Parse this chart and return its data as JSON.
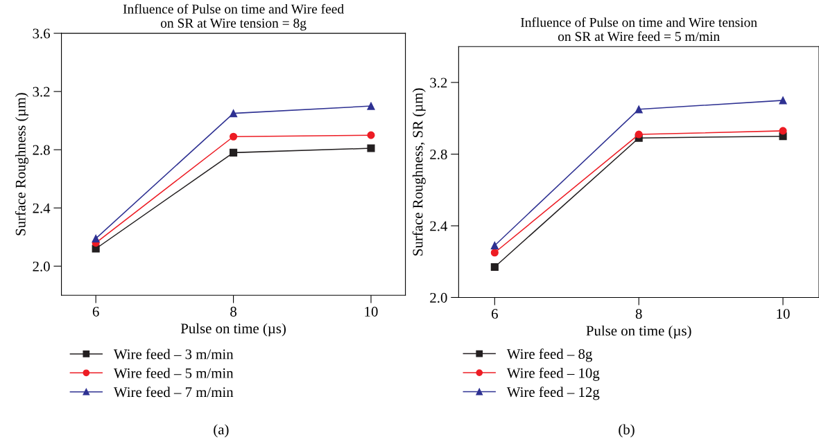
{
  "chart_data": [
    {
      "type": "line",
      "title": "Influence of Pulse on time and Wire feed\non SR at Wire tension = 8g",
      "xlabel": "Pulse on time (µs)",
      "ylabel": "Surface Roughness (µm)",
      "x": [
        6,
        8,
        10
      ],
      "series": [
        {
          "name": "Wire feed – 3 m/min",
          "color": "#231f20",
          "marker": "square",
          "values": [
            2.12,
            2.78,
            2.81
          ]
        },
        {
          "name": "Wire feed – 5 m/min",
          "color": "#ed1c24",
          "marker": "circle",
          "values": [
            2.16,
            2.89,
            2.9
          ]
        },
        {
          "name": "Wire feed – 7 m/min",
          "color": "#2e3192",
          "marker": "triangle",
          "values": [
            2.19,
            3.05,
            3.1
          ]
        }
      ],
      "xlim": [
        5.5,
        10.5
      ],
      "xticks": [
        6,
        8,
        10
      ],
      "ylim": [
        1.8,
        3.6
      ],
      "yticks": [
        {
          "value": 2,
          "label": "2.0"
        },
        2.4,
        2.8,
        3.2,
        3.6
      ],
      "grid": false,
      "legend": "bottom",
      "annotations": [
        "(a)"
      ]
    },
    {
      "type": "line",
      "title": "Influence of Pulse on time and Wire tension\non SR at Wire feed = 5 m/min",
      "xlabel": "Pulse on time (µs)",
      "ylabel": "Surface Roughness, SR (µm)",
      "x": [
        6,
        8,
        10
      ],
      "series": [
        {
          "name": "Wire feed – 8g",
          "color": "#231f20",
          "marker": "square",
          "values": [
            2.17,
            2.89,
            2.9
          ]
        },
        {
          "name": "Wire feed – 10g",
          "color": "#ed1c24",
          "marker": "circle",
          "values": [
            2.25,
            2.91,
            2.93
          ]
        },
        {
          "name": "Wire feed – 12g",
          "color": "#2e3192",
          "marker": "triangle",
          "values": [
            2.29,
            3.05,
            3.1
          ]
        }
      ],
      "xlim": [
        5.5,
        10.5
      ],
      "xticks": [
        6,
        8,
        10
      ],
      "ylim": [
        2.0,
        3.4
      ],
      "yticks": [
        {
          "value": 2,
          "label": "2.0"
        },
        2.4,
        2.8,
        3.2
      ],
      "grid": false,
      "legend": "bottom",
      "annotations": [
        "(b)"
      ]
    }
  ]
}
